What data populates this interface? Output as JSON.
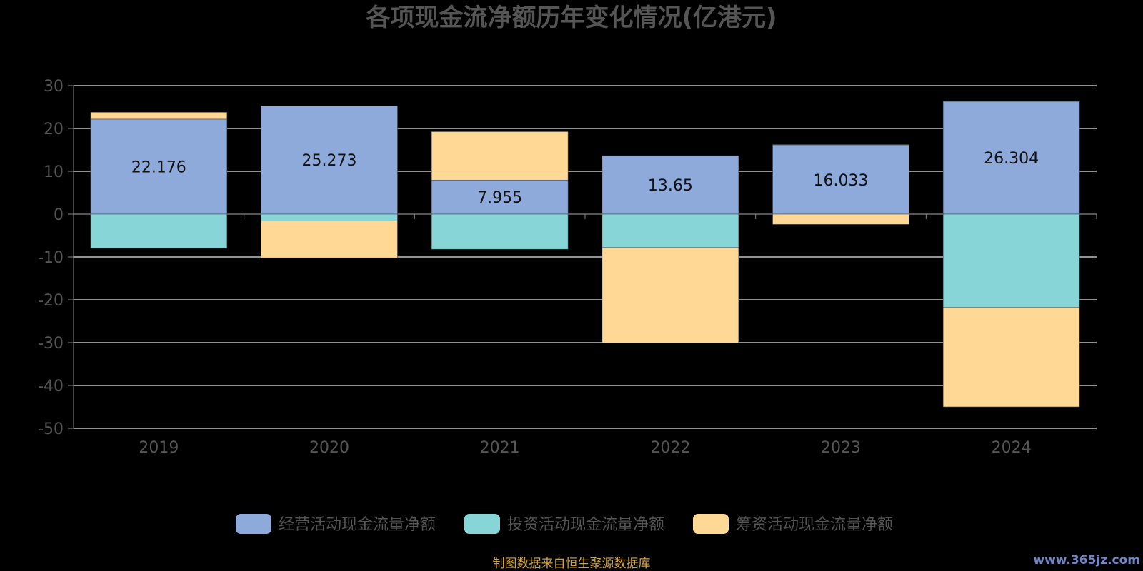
{
  "chart_data": {
    "type": "bar",
    "stacked": true,
    "title": "各项现金流净额历年变化情况(亿港元)",
    "categories": [
      "2019",
      "2020",
      "2021",
      "2022",
      "2023",
      "2024"
    ],
    "ylim": [
      -50,
      30
    ],
    "yticks": [
      "30",
      "20",
      "10",
      "0",
      "-10",
      "-20",
      "-30",
      "-40",
      "-50"
    ],
    "grid": true,
    "legend_position": "bottom",
    "series": [
      {
        "name": "经营活动现金流量净额",
        "color": "#8eaadb",
        "values": [
          22.176,
          25.273,
          7.955,
          13.65,
          16.033,
          26.304
        ],
        "labels": [
          "22.176",
          "25.273",
          "7.955",
          "13.65",
          "16.033",
          "26.304"
        ]
      },
      {
        "name": "投资活动现金流量净额",
        "color": "#87d5d7",
        "values": [
          -8.0,
          -1.6,
          -8.2,
          -7.8,
          0.2,
          -21.8
        ]
      },
      {
        "name": "筹资活动现金流量净额",
        "color": "#ffd896",
        "values": [
          1.6,
          -8.6,
          11.3,
          -22.3,
          -2.4,
          -23.2
        ]
      }
    ]
  },
  "footer": {
    "source": "制图数据来自恒生聚源数据库",
    "watermark": "www.365jz.com"
  }
}
